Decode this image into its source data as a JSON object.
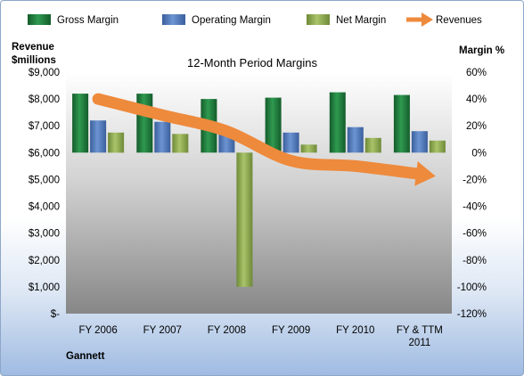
{
  "chart_data": {
    "type": "bar",
    "title": "12-Month Period Margins",
    "company": "Gannett",
    "left_axis_label": [
      "Revenue",
      "$millions"
    ],
    "right_axis_label": "Margin %",
    "categories": [
      [
        "FY 2006"
      ],
      [
        "FY 2007"
      ],
      [
        "FY 2008"
      ],
      [
        "FY 2009"
      ],
      [
        "FY 2010"
      ],
      [
        "FY & TTM",
        "2011"
      ]
    ],
    "series": [
      {
        "name": "Gross Margin",
        "type": "bar",
        "axis": "right",
        "color": "#1f7a3c",
        "values": [
          44,
          44,
          40,
          41,
          45,
          43
        ]
      },
      {
        "name": "Operating Margin",
        "type": "bar",
        "axis": "right",
        "color": "#4f77b8",
        "values": [
          24,
          23,
          18,
          15,
          19,
          16
        ]
      },
      {
        "name": "Net Margin",
        "type": "bar",
        "axis": "right",
        "color": "#8daa4f",
        "values": [
          15,
          14,
          -100,
          6,
          11,
          9
        ]
      },
      {
        "name": "Revenues",
        "type": "arrow",
        "axis": "left",
        "color": "#ee8a3c",
        "values": [
          8000,
          7400,
          6800,
          5700,
          5500,
          5200
        ]
      }
    ],
    "left_axis": {
      "min": 0,
      "max": 9000,
      "step": 1000,
      "tick_labels": [
        "$-",
        "$1,000",
        "$2,000",
        "$3,000",
        "$4,000",
        "$5,000",
        "$6,000",
        "$7,000",
        "$8,000",
        "$9,000"
      ]
    },
    "right_axis": {
      "min": -120,
      "max": 60,
      "step": 20,
      "tick_labels": [
        "-120%",
        "-100%",
        "-80%",
        "-60%",
        "-40%",
        "-20%",
        "0%",
        "20%",
        "40%",
        "60%"
      ]
    },
    "legend_position": "top",
    "grid": false
  }
}
